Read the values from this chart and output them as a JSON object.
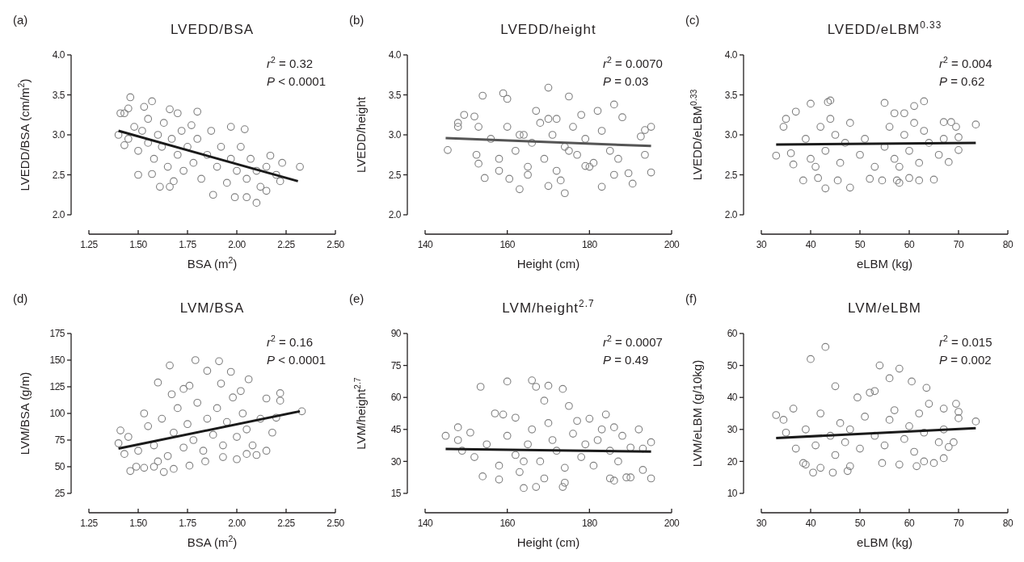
{
  "chart_data": [
    {
      "type": "scatter",
      "title": "LVEDD/BSA",
      "xlabel": "BSA (m$^{2}$)",
      "ylabel": "LVEDD/BSA (cm/m$^{2}$)",
      "marker": "circle",
      "xlim": [
        1.25,
        2.5
      ],
      "xticks": [
        1.25,
        {
          "value": 1.5,
          "label": "1.50"
        },
        1.75,
        {
          "value": 2,
          "label": "2.00"
        },
        2.25,
        {
          "value": 2.5,
          "label": "2.50"
        }
      ],
      "ylim": [
        2,
        4
      ],
      "yticks": [
        {
          "value": 2,
          "label": "2.0"
        },
        2.5,
        {
          "value": 3,
          "label": "3.0"
        },
        3.5,
        {
          "value": 4,
          "label": "4.0"
        }
      ],
      "annotations": [
        "(a)",
        "r$^{2}$ = 0.32",
        "P < 0.0001"
      ],
      "series": [
        {
          "type": "scatter",
          "color": "#7f7f7f",
          "x": [
            1.4,
            1.41,
            1.43,
            1.46,
            1.45,
            1.43,
            1.5,
            1.61,
            1.57,
            1.66,
            1.8,
            1.57,
            1.53,
            1.66,
            1.7,
            2.04,
            2.1,
            2.05,
            1.99,
            1.88,
            2.32,
            2.22,
            2.23,
            2.17,
            2.15,
            1.97,
            1.45,
            1.48,
            1.5,
            1.52,
            1.55,
            1.55,
            1.58,
            1.6,
            1.62,
            1.63,
            1.65,
            1.67,
            1.7,
            1.72,
            1.73,
            1.75,
            1.78,
            1.8,
            1.82,
            1.85,
            1.87,
            1.9,
            1.92,
            1.95,
            1.97,
            2.0,
            2.02,
            2.05,
            2.07,
            2.1,
            2.12,
            2.15,
            2.2,
            1.68,
            1.77
          ],
          "values": [
            3.0,
            3.27,
            3.27,
            3.47,
            3.33,
            2.87,
            2.5,
            2.35,
            2.51,
            2.35,
            3.29,
            3.42,
            3.35,
            3.32,
            3.27,
            3.07,
            2.15,
            2.22,
            2.22,
            2.25,
            2.6,
            2.42,
            2.65,
            2.74,
            2.3,
            3.1,
            2.95,
            3.1,
            2.8,
            3.05,
            2.9,
            3.2,
            2.7,
            3.0,
            2.85,
            3.15,
            2.6,
            2.95,
            2.75,
            3.05,
            2.55,
            2.85,
            2.65,
            2.95,
            2.45,
            2.75,
            3.05,
            2.6,
            2.85,
            2.4,
            2.7,
            2.55,
            2.85,
            2.45,
            2.7,
            2.55,
            2.35,
            2.6,
            2.5,
            2.42,
            3.12
          ]
        },
        {
          "type": "line",
          "marker": "none",
          "color": "#1a1a1a",
          "x": [
            1.4,
            2.31
          ],
          "values": [
            3.05,
            2.42
          ]
        }
      ]
    },
    {
      "type": "scatter",
      "title": "LVEDD/height",
      "xlabel": "Height (cm)",
      "ylabel": "LVEDD/height",
      "marker": "circle",
      "xlim": [
        140,
        200
      ],
      "xticks": [
        140,
        160,
        180,
        200
      ],
      "ylim": [
        2,
        4
      ],
      "yticks": [
        {
          "value": 2,
          "label": "2.0"
        },
        2.5,
        {
          "value": 3,
          "label": "3.0"
        },
        3.5,
        {
          "value": 4,
          "label": "4.0"
        }
      ],
      "annotations": [
        "(b)",
        "r$^{2}$ = 0.0070",
        "P = 0.03"
      ],
      "series": [
        {
          "type": "scatter",
          "color": "#7f7f7f",
          "x": [
            145.5,
            148,
            148,
            149.5,
            152,
            153,
            152.5,
            153,
            154,
            154.5,
            158,
            159,
            160,
            160.5,
            163,
            170,
            170,
            174,
            175,
            173,
            183,
            186,
            189.5,
            190.5,
            192.5,
            193.5,
            193.5,
            195,
            195,
            186,
            188,
            179,
            182,
            167,
            165,
            172,
            178,
            156,
            158,
            160,
            162,
            163,
            165,
            166,
            168,
            169,
            171,
            172,
            174,
            176,
            177,
            179,
            181,
            183,
            185,
            187,
            164,
            170,
            175,
            180
          ],
          "values": [
            2.81,
            3.15,
            3.1,
            3.25,
            3.23,
            3.1,
            2.75,
            2.64,
            3.49,
            2.46,
            2.55,
            3.52,
            3.45,
            2.45,
            2.32,
            3.59,
            2.36,
            2.27,
            3.48,
            2.43,
            2.35,
            3.38,
            2.52,
            2.39,
            2.98,
            3.06,
            2.75,
            3.1,
            2.53,
            2.5,
            3.22,
            2.61,
            3.3,
            3.3,
            2.5,
            3.2,
            3.25,
            2.95,
            2.7,
            3.1,
            2.8,
            3.0,
            2.6,
            2.9,
            3.15,
            2.7,
            3.0,
            2.55,
            2.85,
            3.1,
            2.75,
            2.95,
            2.65,
            3.05,
            2.8,
            2.7,
            3.0,
            3.2,
            2.8,
            2.6
          ]
        },
        {
          "type": "line",
          "marker": "none",
          "color": "#555555",
          "x": [
            145,
            195
          ],
          "values": [
            2.96,
            2.86
          ]
        }
      ]
    },
    {
      "type": "scatter",
      "title": "LVEDD/eLBM$^{0.33}$",
      "xlabel": "eLBM (kg)",
      "ylabel": "LVEDD/eLBM$^{0.33}$",
      "marker": "circle",
      "xlim": [
        30,
        80
      ],
      "xticks": [
        30,
        40,
        50,
        60,
        70,
        80
      ],
      "ylim": [
        2,
        4
      ],
      "yticks": [
        {
          "value": 2,
          "label": "2.0"
        },
        2.5,
        {
          "value": 3,
          "label": "3.0"
        },
        3.5,
        {
          "value": 4,
          "label": "4.0"
        }
      ],
      "annotations": [
        "(c)",
        "r$^{2}$ = 0.004",
        "P = 0.62"
      ],
      "series": [
        {
          "type": "scatter",
          "color": "#7f7f7f",
          "x": [
            33,
            35,
            34.5,
            36,
            36.5,
            37,
            38.5,
            40,
            41.5,
            43,
            43.5,
            44,
            45.5,
            48,
            52,
            54.5,
            55,
            57.5,
            58,
            60,
            61,
            62,
            63,
            65,
            67,
            68.5,
            69.5,
            70,
            70,
            73.5,
            68,
            57,
            59,
            39,
            40,
            42,
            43,
            45,
            46,
            47,
            48,
            50,
            51,
            53,
            55,
            56,
            57,
            59,
            60,
            62,
            63,
            64,
            66,
            67,
            41,
            44,
            58,
            61
          ],
          "values": [
            2.74,
            3.2,
            3.1,
            2.77,
            2.63,
            3.29,
            2.43,
            3.39,
            2.46,
            2.33,
            3.41,
            3.43,
            2.43,
            2.34,
            2.45,
            2.43,
            3.4,
            2.43,
            2.4,
            2.46,
            3.36,
            2.43,
            3.42,
            2.44,
            3.16,
            3.16,
            3.1,
            2.81,
            2.97,
            3.13,
            2.66,
            3.27,
            3.27,
            2.95,
            2.7,
            3.1,
            2.8,
            3.0,
            2.65,
            2.9,
            3.15,
            2.75,
            2.95,
            2.6,
            2.85,
            3.1,
            2.7,
            3.0,
            2.8,
            2.65,
            3.05,
            2.9,
            2.75,
            2.95,
            2.6,
            3.2,
            2.6,
            3.15
          ]
        },
        {
          "type": "line",
          "marker": "none",
          "color": "#1a1a1a",
          "x": [
            33,
            73.5
          ],
          "values": [
            2.88,
            2.9
          ]
        }
      ]
    },
    {
      "type": "scatter",
      "title": "LVM/BSA",
      "xlabel": "BSA (m$^{2}$)",
      "ylabel": "LVM/BSA (g/m)",
      "marker": "circle",
      "xlim": [
        1.25,
        2.5
      ],
      "xticks": [
        1.25,
        {
          "value": 1.5,
          "label": "1.50"
        },
        1.75,
        {
          "value": 2,
          "label": "2.00"
        },
        2.25,
        {
          "value": 2.5,
          "label": "2.50"
        }
      ],
      "ylim": [
        25,
        175
      ],
      "yticks": [
        25,
        50,
        75,
        100,
        125,
        150,
        175
      ],
      "annotations": [
        "(d)",
        "r$^{2}$ = 0.16",
        "P < 0.0001"
      ],
      "series": [
        {
          "type": "scatter",
          "color": "#7f7f7f",
          "x": [
            1.4,
            1.41,
            1.43,
            1.46,
            1.49,
            1.53,
            1.53,
            1.6,
            1.63,
            1.66,
            1.67,
            1.73,
            1.76,
            1.79,
            1.85,
            1.91,
            1.97,
            1.92,
            2.0,
            2.06,
            2.1,
            2.15,
            2.15,
            2.22,
            2.22,
            2.33,
            2.2,
            2.18,
            1.68,
            1.76,
            1.84,
            1.93,
            2.02,
            2.05,
            1.58,
            1.6,
            1.45,
            1.5,
            1.55,
            1.58,
            1.62,
            1.65,
            1.68,
            1.7,
            1.73,
            1.75,
            1.78,
            1.8,
            1.83,
            1.85,
            1.88,
            1.9,
            1.93,
            1.95,
            1.98,
            2.0,
            2.03,
            2.05,
            2.08,
            2.12
          ],
          "values": [
            72,
            84,
            62,
            46,
            50,
            49,
            100,
            129,
            45,
            145,
            118,
            123,
            126,
            150,
            140,
            149,
            139,
            128,
            57,
            132,
            61,
            65,
            114,
            119,
            112,
            102,
            96,
            82,
            48,
            51,
            55,
            59,
            121,
            62,
            50,
            55,
            78,
            65,
            88,
            70,
            95,
            60,
            82,
            105,
            68,
            90,
            75,
            110,
            65,
            95,
            80,
            105,
            70,
            92,
            115,
            78,
            100,
            85,
            70,
            95
          ]
        },
        {
          "type": "line",
          "marker": "none",
          "color": "#1a1a1a",
          "x": [
            1.4,
            2.32
          ],
          "values": [
            67,
            102
          ]
        }
      ]
    },
    {
      "type": "scatter",
      "title": "LVM/height$^{2.7}$",
      "xlabel": "Height (cm)",
      "ylabel": "LVM/height$^{2.7}$",
      "marker": "circle",
      "xlim": [
        140,
        200
      ],
      "xticks": [
        140,
        160,
        180,
        200
      ],
      "ylim": [
        15,
        90
      ],
      "yticks": [
        15,
        30,
        45,
        60,
        75,
        90
      ],
      "annotations": [
        "(e)",
        "r$^{2}$ = 0.0007",
        "P = 0.49"
      ],
      "series": [
        {
          "type": "scatter",
          "color": "#7f7f7f",
          "x": [
            145,
            148,
            148,
            149,
            151,
            152,
            153.5,
            154,
            158,
            160,
            159,
            164,
            166,
            167,
            167,
            170,
            173.5,
            173.5,
            169,
            175,
            174,
            184,
            185,
            186,
            189,
            190,
            190,
            192,
            193,
            193,
            195,
            195,
            186,
            188,
            157,
            162,
            180,
            177,
            155,
            158,
            160,
            162,
            163,
            165,
            166,
            168,
            169,
            171,
            172,
            174,
            176,
            178,
            179,
            181,
            183,
            185,
            187,
            164,
            170,
            182
          ],
          "values": [
            42,
            46,
            40,
            35,
            43.5,
            32,
            65,
            23,
            21.5,
            67.5,
            52,
            17.5,
            68,
            65,
            18,
            65.5,
            64,
            18,
            58.5,
            56,
            20,
            52,
            22,
            21,
            22.5,
            22.5,
            36.5,
            45,
            26,
            36,
            39,
            22,
            46,
            42,
            52.5,
            50.5,
            50,
            49,
            38,
            28,
            42,
            33,
            25,
            38,
            45,
            30,
            22,
            40,
            35,
            27,
            43,
            32,
            38,
            28,
            45,
            35,
            30,
            30,
            48,
            40
          ]
        },
        {
          "type": "line",
          "marker": "none",
          "color": "#1a1a1a",
          "x": [
            145,
            195
          ],
          "values": [
            35.8,
            34.6
          ]
        }
      ]
    },
    {
      "type": "scatter",
      "title": "LVM/eLBM",
      "xlabel": "eLBM (kg)",
      "ylabel": "LVM/eLBM (g/10kg)",
      "marker": "circle",
      "xlim": [
        30,
        80
      ],
      "xticks": [
        30,
        40,
        50,
        60,
        70,
        80
      ],
      "ylim": [
        10,
        60
      ],
      "yticks": [
        10,
        20,
        30,
        40,
        50,
        60
      ],
      "annotations": [
        "(f)",
        "r$^{2}$ = 0.015",
        "P = 0.002"
      ],
      "series": [
        {
          "type": "scatter",
          "color": "#7f7f7f",
          "x": [
            33,
            34.5,
            35,
            36.5,
            37,
            38.5,
            39,
            40,
            40.5,
            43,
            44.5,
            45,
            47.5,
            49.5,
            52,
            53,
            54,
            54.5,
            56,
            58,
            58,
            60.5,
            61.5,
            63.5,
            63,
            65,
            67,
            67,
            69.5,
            70,
            70,
            73.5,
            68,
            69,
            42,
            48,
            39,
            41,
            42,
            44,
            45,
            46,
            47,
            48,
            50,
            51,
            53,
            55,
            56,
            57,
            59,
            60,
            61,
            62,
            63,
            64,
            66,
            67
          ],
          "values": [
            34.5,
            33,
            29,
            36.5,
            24,
            19.5,
            19,
            52,
            16.5,
            55.8,
            16.5,
            43.5,
            17,
            40,
            41.5,
            42,
            50,
            19.5,
            46,
            49,
            19,
            45,
            18.5,
            43,
            20,
            19.5,
            21,
            36.5,
            38,
            35.5,
            33.5,
            32.5,
            24.5,
            26,
            18,
            18.5,
            30,
            25,
            35,
            28,
            22,
            32,
            26,
            30,
            24,
            34,
            28,
            25,
            33,
            36,
            27,
            31,
            23,
            35,
            29,
            38,
            26,
            30
          ]
        },
        {
          "type": "line",
          "marker": "none",
          "color": "#1a1a1a",
          "x": [
            33,
            73.5
          ],
          "values": [
            27.3,
            30.4
          ]
        }
      ]
    }
  ]
}
